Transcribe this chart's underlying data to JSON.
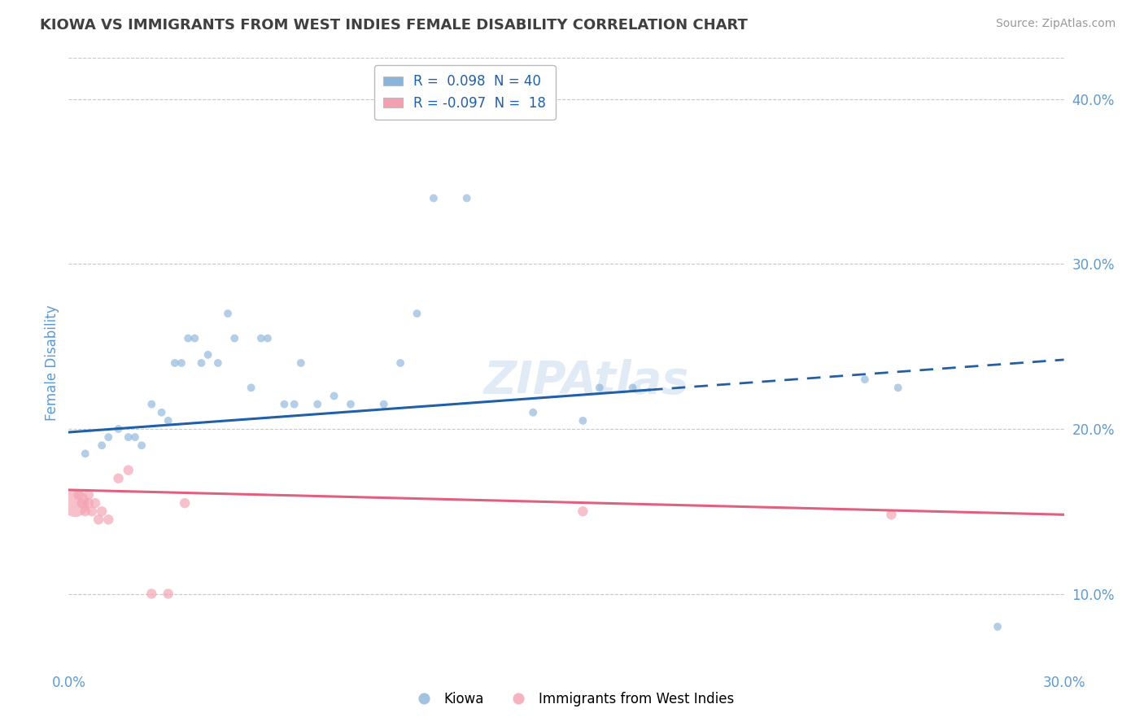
{
  "title": "KIOWA VS IMMIGRANTS FROM WEST INDIES FEMALE DISABILITY CORRELATION CHART",
  "source": "Source: ZipAtlas.com",
  "ylabel_label": "Female Disability",
  "xlim": [
    0.0,
    0.3
  ],
  "ylim": [
    0.055,
    0.425
  ],
  "yticks_right": [
    0.1,
    0.2,
    0.3,
    0.4
  ],
  "ytick_right_labels": [
    "10.0%",
    "20.0%",
    "30.0%",
    "40.0%"
  ],
  "grid_color": "#c8c8c8",
  "background_color": "#ffffff",
  "watermark": "ZIPAtlas",
  "legend_r1": "R =  0.098  N = 40",
  "legend_r2": "R = -0.097  N =  18",
  "blue_color": "#8ab4d9",
  "pink_color": "#f4a0b0",
  "blue_line_color": "#2060a8",
  "pink_line_color": "#e06080",
  "title_color": "#404040",
  "axis_label_color": "#5b9bd5",
  "kiowa_x": [
    0.005,
    0.01,
    0.012,
    0.015,
    0.018,
    0.02,
    0.022,
    0.025,
    0.028,
    0.03,
    0.032,
    0.034,
    0.036,
    0.038,
    0.04,
    0.042,
    0.045,
    0.048,
    0.05,
    0.055,
    0.058,
    0.06,
    0.065,
    0.068,
    0.07,
    0.075,
    0.08,
    0.085,
    0.095,
    0.1,
    0.105,
    0.11,
    0.12,
    0.14,
    0.155,
    0.16,
    0.17,
    0.24,
    0.25,
    0.28
  ],
  "kiowa_y": [
    0.185,
    0.19,
    0.195,
    0.2,
    0.195,
    0.195,
    0.19,
    0.215,
    0.21,
    0.205,
    0.24,
    0.24,
    0.255,
    0.255,
    0.24,
    0.245,
    0.24,
    0.27,
    0.255,
    0.225,
    0.255,
    0.255,
    0.215,
    0.215,
    0.24,
    0.215,
    0.22,
    0.215,
    0.215,
    0.24,
    0.27,
    0.34,
    0.34,
    0.21,
    0.205,
    0.225,
    0.225,
    0.23,
    0.225,
    0.08
  ],
  "kiowa_sizes": [
    50,
    50,
    50,
    50,
    50,
    50,
    50,
    50,
    50,
    50,
    50,
    50,
    50,
    50,
    50,
    50,
    50,
    50,
    50,
    50,
    50,
    50,
    50,
    50,
    50,
    50,
    50,
    50,
    50,
    50,
    50,
    50,
    50,
    50,
    50,
    50,
    50,
    50,
    50,
    50
  ],
  "west_x": [
    0.002,
    0.003,
    0.004,
    0.005,
    0.006,
    0.006,
    0.007,
    0.008,
    0.009,
    0.01,
    0.012,
    0.015,
    0.018,
    0.025,
    0.03,
    0.035,
    0.155,
    0.248
  ],
  "west_y": [
    0.155,
    0.16,
    0.155,
    0.15,
    0.155,
    0.16,
    0.15,
    0.155,
    0.145,
    0.15,
    0.145,
    0.17,
    0.175,
    0.1,
    0.1,
    0.155,
    0.15,
    0.148
  ],
  "west_sizes": [
    600,
    80,
    80,
    80,
    80,
    80,
    80,
    80,
    80,
    80,
    80,
    80,
    80,
    80,
    80,
    80,
    80,
    80
  ],
  "blue_line_x0": 0.0,
  "blue_line_x_solid_end": 0.175,
  "blue_line_x1": 0.3,
  "blue_line_y0": 0.198,
  "blue_line_y1": 0.242,
  "pink_line_x0": 0.0,
  "pink_line_x1": 0.3,
  "pink_line_y0": 0.163,
  "pink_line_y1": 0.148
}
